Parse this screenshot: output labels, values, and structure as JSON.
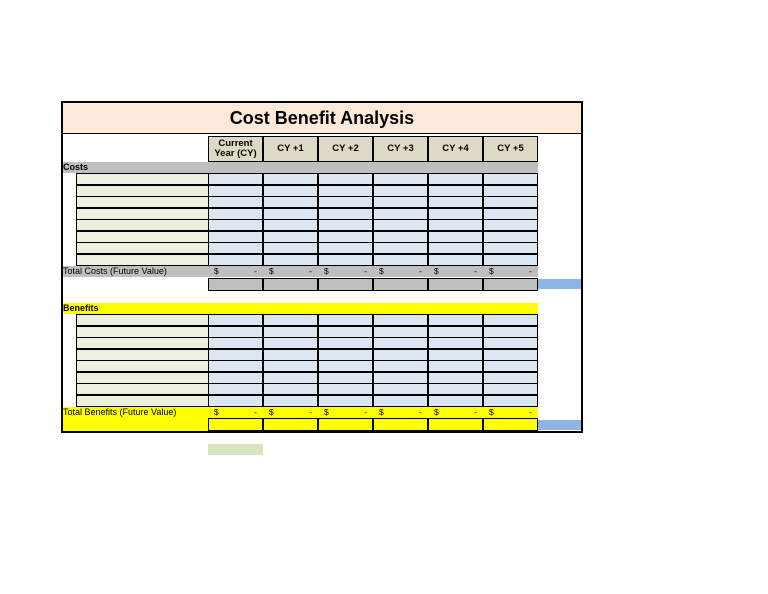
{
  "title": "Cost Benefit Analysis",
  "columns": [
    "Current Year (CY)",
    "CY +1",
    "CY +2",
    "CY +3",
    "CY +4",
    "CY +5"
  ],
  "costs": {
    "label": "Costs",
    "total_label": "Total Costs (Future Value)",
    "totals": [
      {
        "currency": "$",
        "value": "-"
      },
      {
        "currency": "$",
        "value": "-"
      },
      {
        "currency": "$",
        "value": "-"
      },
      {
        "currency": "$",
        "value": "-"
      },
      {
        "currency": "$",
        "value": "-"
      },
      {
        "currency": "$",
        "value": "-"
      }
    ]
  },
  "benefits": {
    "label": "Benefits",
    "total_label": "Total Benefits (Future Value)",
    "totals": [
      {
        "currency": "$",
        "value": "-"
      },
      {
        "currency": "$",
        "value": "-"
      },
      {
        "currency": "$",
        "value": "-"
      },
      {
        "currency": "$",
        "value": "-"
      },
      {
        "currency": "$",
        "value": "-"
      },
      {
        "currency": "$",
        "value": "-"
      }
    ]
  },
  "colors": {
    "title_bg": "#fde9d9",
    "header_bg": "#ddd9c4",
    "label_bg": "#ebf1de",
    "value_bg": "#dce6f1",
    "costs_band": "#bfbfbf",
    "benefits_band": "#ffff00",
    "blue_stub": "#8db4e2",
    "green_cell": "#d8e4bc"
  }
}
